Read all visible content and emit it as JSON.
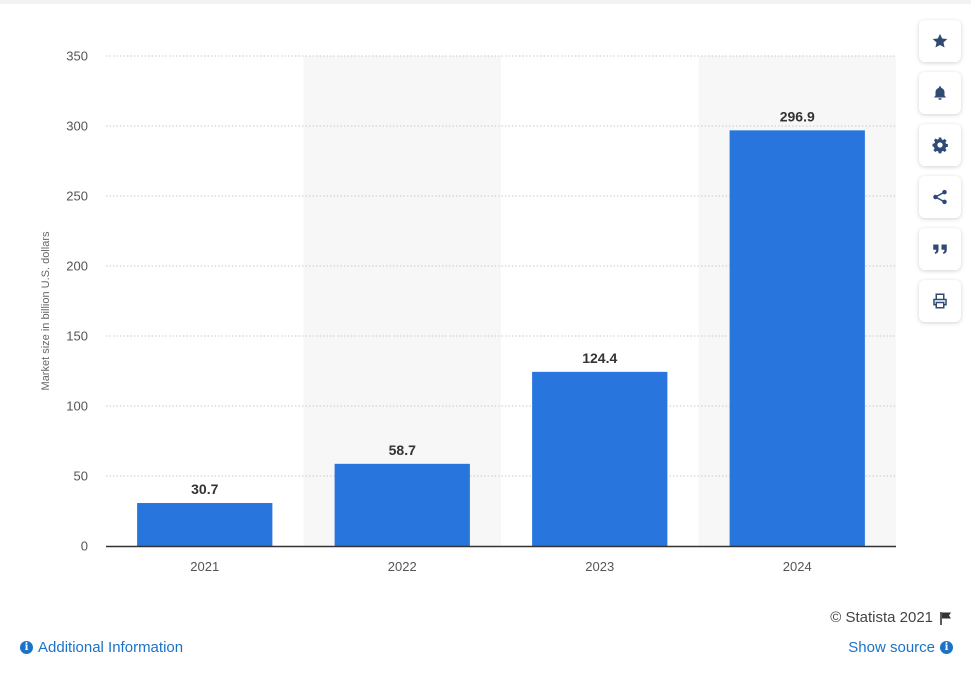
{
  "chart_data": {
    "type": "bar",
    "categories": [
      "2021",
      "2022",
      "2023",
      "2024"
    ],
    "values": [
      30.7,
      58.7,
      124.4,
      296.9
    ],
    "value_labels": [
      "30.7",
      "58.7",
      "124.4",
      "296.9"
    ],
    "ylabel": "Market size in billion U.S. dollars",
    "ylim": [
      0,
      350
    ],
    "yticks": [
      "0",
      "50",
      "100",
      "150",
      "200",
      "250",
      "300",
      "350"
    ],
    "grid": true,
    "bar_color": "#2876dd"
  },
  "toolbar": {
    "buttons": [
      {
        "name": "star-icon"
      },
      {
        "name": "bell-icon"
      },
      {
        "name": "gear-icon"
      },
      {
        "name": "share-icon"
      },
      {
        "name": "quote-icon"
      },
      {
        "name": "print-icon"
      }
    ]
  },
  "footer": {
    "copyright": "© Statista 2021",
    "additional_info": "Additional Information",
    "show_source": "Show source"
  }
}
